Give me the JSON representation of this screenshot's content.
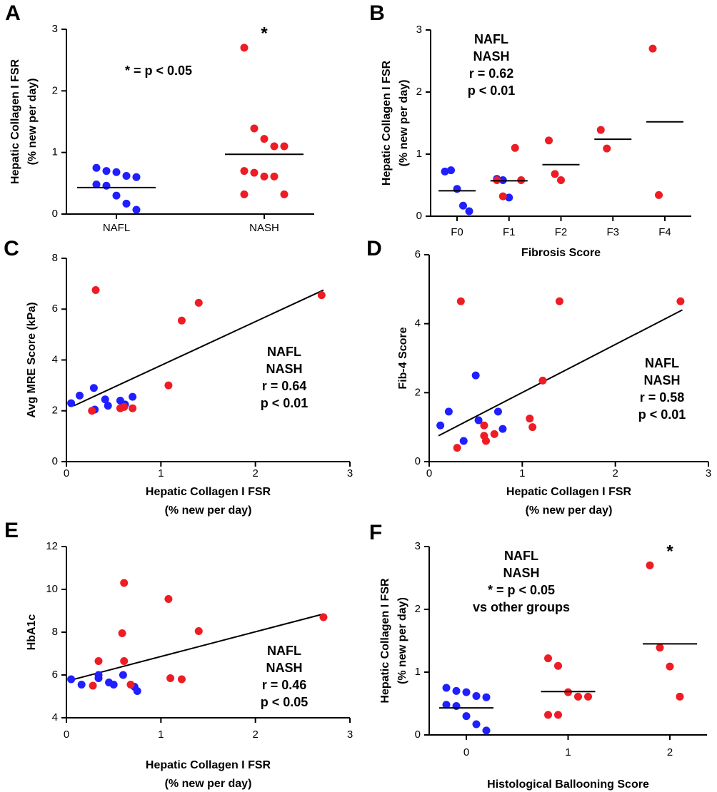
{
  "chart_data": [
    {
      "panel": "A",
      "type": "dot",
      "categories": [
        "NAFL",
        "NASH"
      ],
      "ylabel": [
        "Hepatic Collagen I FSR",
        "(% new per day)"
      ],
      "ylim": [
        0,
        3
      ],
      "yticks": [
        0,
        1,
        2,
        3
      ],
      "series": [
        {
          "color": "#1f1fff",
          "x": [
            "NAFL",
            "NAFL",
            "NAFL",
            "NAFL",
            "NAFL",
            "NAFL",
            "NAFL",
            "NAFL",
            "NAFL",
            "NAFL"
          ],
          "values": [
            0.75,
            0.7,
            0.68,
            0.62,
            0.6,
            0.48,
            0.46,
            0.3,
            0.17,
            0.07
          ]
        },
        {
          "color": "#ee1c24",
          "x": [
            "NASH",
            "NASH",
            "NASH",
            "NASH",
            "NASH",
            "NASH",
            "NASH",
            "NASH",
            "NASH",
            "NASH",
            "NASH"
          ],
          "values": [
            2.7,
            1.39,
            1.22,
            1.1,
            1.1,
            0.7,
            0.67,
            0.61,
            0.61,
            0.32,
            0.32
          ]
        }
      ],
      "means": [
        0.43,
        0.97
      ],
      "annotations": [
        "* = p < 0.05"
      ],
      "significance": [
        {
          "category": "NASH",
          "label": "*",
          "color": "#000000"
        }
      ]
    },
    {
      "panel": "B",
      "type": "dot",
      "categories": [
        "F0",
        "F1",
        "F2",
        "F3",
        "F4"
      ],
      "xlabel": [
        "Fibrosis  Score"
      ],
      "ylabel": [
        "Hepatic Collagen I FSR",
        "(% new per day)"
      ],
      "ylim": [
        0,
        3
      ],
      "yticks": [
        0,
        1,
        2,
        3
      ],
      "series": [
        {
          "name": "NAFL",
          "color": "#1f1fff",
          "x": [
            "F0",
            "F0",
            "F0",
            "F0",
            "F0",
            "F1",
            "F1",
            "F1"
          ],
          "values": [
            0.72,
            0.74,
            0.44,
            0.17,
            0.08,
            0.6,
            0.58,
            0.3
          ]
        },
        {
          "name": "NASH",
          "color": "#ee1c24",
          "x": [
            "F1",
            "F1",
            "F1",
            "F1",
            "F2",
            "F2",
            "F2",
            "F3",
            "F3",
            "F4",
            "F4"
          ],
          "values": [
            1.1,
            0.58,
            0.58,
            0.32,
            1.22,
            0.68,
            0.58,
            1.39,
            1.09,
            2.7,
            0.34
          ]
        }
      ],
      "means": [
        0.41,
        0.57,
        0.83,
        1.24,
        1.52
      ],
      "annotations": [
        "r = 0.62",
        "p < 0.01"
      ]
    },
    {
      "panel": "C",
      "type": "scatter",
      "xlabel": [
        "Hepatic Collagen I FSR",
        "(% new per day)"
      ],
      "ylabel": [
        "Avg MRE Score (kPa)"
      ],
      "xlim": [
        0,
        3
      ],
      "xticks": [
        0,
        1,
        2,
        3
      ],
      "ylim": [
        0,
        8
      ],
      "yticks": [
        0,
        2,
        4,
        6,
        8
      ],
      "series": [
        {
          "name": "NAFL",
          "color": "#1f1fff",
          "x": [
            0.05,
            0.14,
            0.29,
            0.3,
            0.41,
            0.44,
            0.57,
            0.62,
            0.7
          ],
          "values": [
            2.3,
            2.6,
            2.9,
            2.05,
            2.45,
            2.2,
            2.4,
            2.25,
            2.55
          ]
        },
        {
          "name": "NASH",
          "color": "#ee1c24",
          "x": [
            0.31,
            1.22,
            1.4,
            2.7,
            1.08,
            0.27,
            0.57,
            0.61,
            0.7
          ],
          "values": [
            6.75,
            5.55,
            6.25,
            6.55,
            3.0,
            2.0,
            2.1,
            2.15,
            2.1
          ]
        }
      ],
      "fit": {
        "x": [
          0.08,
          2.72
        ],
        "y": [
          2.2,
          6.75
        ]
      },
      "annotations": [
        "r = 0.64",
        "p < 0.01"
      ]
    },
    {
      "panel": "D",
      "type": "scatter",
      "xlabel": [
        "Hepatic Collagen I FSR",
        "(% new per day)"
      ],
      "ylabel": [
        "Fib-4 Score"
      ],
      "xlim": [
        0,
        3
      ],
      "xticks": [
        0,
        1,
        2,
        3
      ],
      "ylim": [
        0,
        6
      ],
      "yticks": [
        0,
        2,
        4,
        6
      ],
      "series": [
        {
          "name": "NAFL",
          "color": "#1f1fff",
          "x": [
            0.12,
            0.21,
            0.5,
            0.53,
            0.37,
            0.74,
            0.79
          ],
          "values": [
            1.05,
            1.45,
            2.5,
            1.2,
            0.6,
            1.45,
            0.95
          ]
        },
        {
          "name": "NASH",
          "color": "#ee1c24",
          "x": [
            0.34,
            1.4,
            2.7,
            1.22,
            1.08,
            1.11,
            0.59,
            0.61,
            0.7,
            0.3,
            0.59
          ],
          "values": [
            4.65,
            4.65,
            4.65,
            2.35,
            1.25,
            1.0,
            1.05,
            0.6,
            0.8,
            0.4,
            0.75
          ]
        }
      ],
      "fit": {
        "x": [
          0.1,
          2.72
        ],
        "y": [
          0.75,
          4.4
        ]
      },
      "annotations": [
        "r = 0.58",
        "p < 0.01"
      ]
    },
    {
      "panel": "E",
      "type": "scatter",
      "xlabel": [
        "Hepatic Collagen I FSR",
        "(% new per day)"
      ],
      "ylabel": [
        "HbA1c"
      ],
      "xlim": [
        0,
        3
      ],
      "xticks": [
        0,
        1,
        2,
        3
      ],
      "ylim": [
        4,
        12
      ],
      "yticks": [
        4,
        6,
        8,
        10,
        12
      ],
      "series": [
        {
          "name": "NAFL",
          "color": "#1f1fff",
          "x": [
            0.05,
            0.16,
            0.34,
            0.34,
            0.45,
            0.5,
            0.6,
            0.72,
            0.75
          ],
          "values": [
            5.8,
            5.55,
            5.85,
            6.0,
            5.65,
            5.55,
            6.0,
            5.45,
            5.25
          ]
        },
        {
          "name": "NASH",
          "color": "#ee1c24",
          "x": [
            0.61,
            1.08,
            0.59,
            1.4,
            2.72,
            0.34,
            0.61,
            1.1,
            1.22,
            0.28,
            0.68
          ],
          "values": [
            10.3,
            9.55,
            7.95,
            8.05,
            8.7,
            6.65,
            6.65,
            5.85,
            5.8,
            5.5,
            5.55
          ]
        }
      ],
      "fit": {
        "x": [
          0.08,
          2.72
        ],
        "y": [
          5.8,
          8.85
        ]
      },
      "annotations": [
        "r = 0.46",
        "p < 0.05"
      ]
    },
    {
      "panel": "F",
      "type": "dot",
      "categories": [
        "0",
        "1",
        "2"
      ],
      "xlabel": [
        "Histological Ballooning Score"
      ],
      "ylabel": [
        "Hepatic Collagen I FSR",
        "(% new per day)"
      ],
      "ylim": [
        0,
        3
      ],
      "yticks": [
        0,
        1,
        2,
        3
      ],
      "series": [
        {
          "name": "NAFL",
          "color": "#1f1fff",
          "x": [
            "0",
            "0",
            "0",
            "0",
            "0",
            "0",
            "0",
            "0",
            "0",
            "0"
          ],
          "values": [
            0.75,
            0.7,
            0.68,
            0.62,
            0.6,
            0.48,
            0.46,
            0.3,
            0.17,
            0.07
          ]
        },
        {
          "name": "NASH",
          "color": "#ee1c24",
          "x": [
            "1",
            "1",
            "1",
            "1",
            "1",
            "1",
            "1",
            "2",
            "2",
            "2",
            "2"
          ],
          "values": [
            1.22,
            1.1,
            0.68,
            0.61,
            0.61,
            0.32,
            0.32,
            2.7,
            1.39,
            1.09,
            0.61
          ]
        }
      ],
      "means": [
        0.43,
        0.69,
        1.45
      ],
      "annotations": [
        "* = p < 0.05",
        "vs other groups"
      ],
      "significance": [
        {
          "category": "2",
          "label": "*",
          "color": "#ee1c24"
        }
      ]
    }
  ]
}
